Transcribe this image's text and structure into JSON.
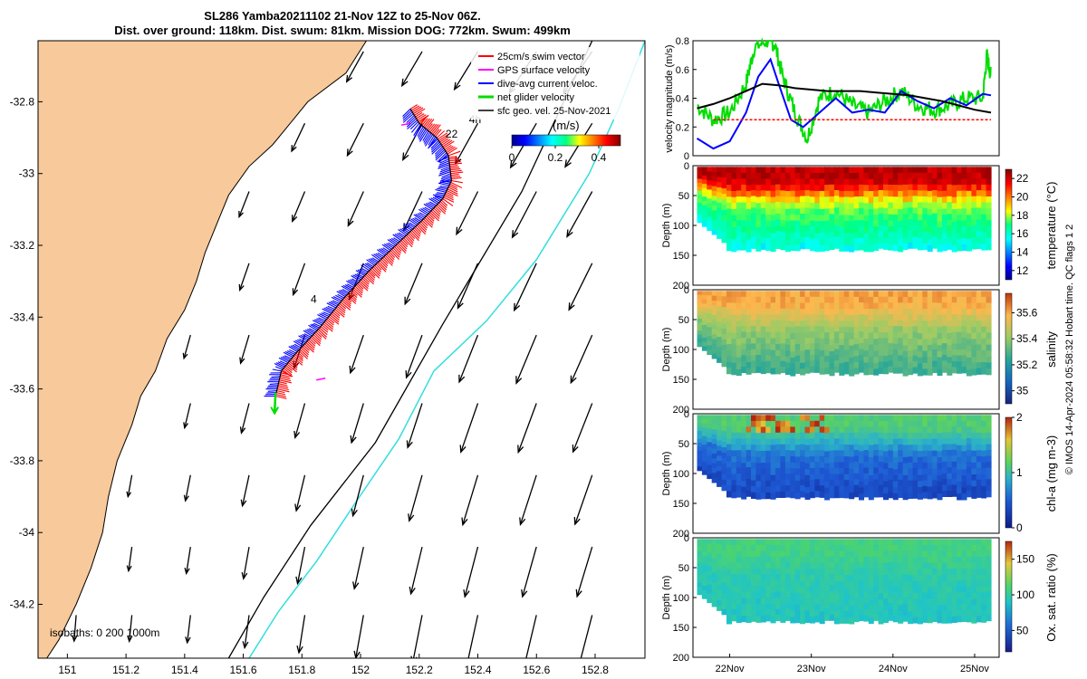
{
  "header": {
    "line1": "SL286 Yamba20211102 21-Nov 12Z to 25-Nov 06Z.",
    "line2": "Dist. over ground: 118km. Dist. swum: 81km. Mission DOG: 772km. Swum: 499km"
  },
  "footer_credit": "© IMOS 14-Apr-2024 05:58:32 Hobart time. QC flags 1  2",
  "colors": {
    "land": "#f8c99a",
    "swim_vector": "#ff0000",
    "gps_velocity": "#ff00ff",
    "dive_avg_current": "#0000ff",
    "net_glider_velocity": "#00dd00",
    "sfc_geo_velocity": "#000000",
    "isobath_200": "#000000",
    "isobath_1000": "#33dddd"
  },
  "chart_data": [
    {
      "type": "map",
      "xlim": [
        150.9,
        152.97
      ],
      "ylim": [
        -34.35,
        -32.63
      ],
      "xticks": [
        "151",
        "151.2",
        "151.4",
        "151.6",
        "151.8",
        "152",
        "152.2",
        "152.4",
        "152.6",
        "152.8"
      ],
      "xtick_values": [
        151,
        151.2,
        151.4,
        151.6,
        151.8,
        152,
        152.2,
        152.4,
        152.6,
        152.8
      ],
      "yticks": [
        "-32.8",
        "-33",
        "-33.2",
        "-33.4",
        "-33.6",
        "-33.8",
        "-34",
        "-34.2"
      ],
      "ytick_values": [
        -32.8,
        -33,
        -33.2,
        -33.4,
        -33.6,
        -33.8,
        -34,
        -34.2
      ],
      "legend": [
        {
          "label": "25cm/s swim vector",
          "color": "#ff0000"
        },
        {
          "label": "GPS surface velocity",
          "color": "#ff00ff"
        },
        {
          "label": "dive-avg current veloc.",
          "color": "#0000ff"
        },
        {
          "label": "net glider velocity",
          "color": "#00dd00"
        },
        {
          "label": "sfc geo. vel. 25-Nov-2021",
          "color": "#000000"
        }
      ],
      "legend_position": "top-right",
      "colorbar": {
        "title": "(m/s)",
        "ticks": [
          "0",
          "0.2",
          "0.4"
        ],
        "tick_values": [
          0,
          0.2,
          0.4
        ],
        "range": [
          0,
          0.5
        ]
      },
      "annotations": [
        {
          "text": "22",
          "lon": 152.29,
          "lat": -32.9
        },
        {
          "text": "4h",
          "lon": 152.37,
          "lat": -32.86
        },
        {
          "text": "4",
          "lon": 151.83,
          "lat": -33.36
        }
      ],
      "isobaths_label": "isobaths: 0   200  1000m",
      "glider_track": [
        [
          152.17,
          -32.82
        ],
        [
          152.2,
          -32.86
        ],
        [
          152.26,
          -32.9
        ],
        [
          152.3,
          -32.95
        ],
        [
          152.31,
          -33.02
        ],
        [
          152.28,
          -33.07
        ],
        [
          152.21,
          -33.13
        ],
        [
          152.12,
          -33.2
        ],
        [
          152.03,
          -33.27
        ],
        [
          151.94,
          -33.35
        ],
        [
          151.86,
          -33.43
        ],
        [
          151.78,
          -33.5
        ],
        [
          151.73,
          -33.55
        ],
        [
          151.71,
          -33.62
        ]
      ],
      "isobath_200": [
        [
          152.79,
          -32.63
        ],
        [
          152.55,
          -33.05
        ],
        [
          152.28,
          -33.42
        ],
        [
          152.05,
          -33.75
        ],
        [
          151.83,
          -33.98
        ],
        [
          151.67,
          -34.18
        ],
        [
          151.55,
          -34.35
        ]
      ],
      "isobath_1000": [
        [
          152.97,
          -32.63
        ],
        [
          152.88,
          -32.82
        ],
        [
          152.78,
          -33.0
        ],
        [
          152.6,
          -33.24
        ],
        [
          152.43,
          -33.41
        ],
        [
          152.25,
          -33.55
        ],
        [
          152.13,
          -33.74
        ],
        [
          151.98,
          -33.92
        ],
        [
          151.85,
          -34.08
        ],
        [
          151.72,
          -34.22
        ],
        [
          151.62,
          -34.35
        ]
      ],
      "coastline": [
        [
          152.02,
          -32.63
        ],
        [
          151.95,
          -32.72
        ],
        [
          151.82,
          -32.8
        ],
        [
          151.76,
          -32.86
        ],
        [
          151.7,
          -32.92
        ],
        [
          151.62,
          -32.98
        ],
        [
          151.55,
          -33.06
        ],
        [
          151.51,
          -33.14
        ],
        [
          151.47,
          -33.22
        ],
        [
          151.44,
          -33.3
        ],
        [
          151.4,
          -33.38
        ],
        [
          151.34,
          -33.46
        ],
        [
          151.3,
          -33.55
        ],
        [
          151.25,
          -33.62
        ],
        [
          151.22,
          -33.7
        ],
        [
          151.17,
          -33.8
        ],
        [
          151.14,
          -33.9
        ],
        [
          151.12,
          -34.0
        ],
        [
          151.08,
          -34.1
        ],
        [
          151.03,
          -34.2
        ],
        [
          150.97,
          -34.3
        ],
        [
          150.93,
          -34.35
        ]
      ]
    },
    {
      "type": "line",
      "ylabel": "velocity magnitude (m/s)",
      "ylim": [
        0,
        0.8
      ],
      "yticks": [
        "0",
        "0.2",
        "0.4",
        "0.6",
        "0.8"
      ],
      "xlim": [
        21.55,
        25.3
      ],
      "series": [
        {
          "color": "#00dd00",
          "x": [
            21.6,
            21.8,
            22.0,
            22.2,
            22.3,
            22.45,
            22.55,
            22.65,
            22.8,
            22.95,
            23.1,
            23.3,
            23.5,
            23.7,
            23.9,
            24.1,
            24.3,
            24.5,
            24.7,
            24.9,
            25.1,
            25.15,
            25.2
          ],
          "values": [
            0.35,
            0.25,
            0.3,
            0.5,
            0.75,
            0.8,
            0.78,
            0.55,
            0.3,
            0.12,
            0.4,
            0.45,
            0.35,
            0.3,
            0.38,
            0.45,
            0.35,
            0.32,
            0.35,
            0.4,
            0.4,
            0.7,
            0.55
          ]
        },
        {
          "color": "#0000ff",
          "x": [
            21.6,
            21.8,
            22.0,
            22.2,
            22.35,
            22.5,
            22.6,
            22.75,
            22.9,
            23.1,
            23.3,
            23.5,
            23.7,
            23.9,
            24.1,
            24.3,
            24.5,
            24.7,
            24.9,
            25.1,
            25.2
          ],
          "values": [
            0.12,
            0.05,
            0.1,
            0.3,
            0.55,
            0.67,
            0.5,
            0.25,
            0.2,
            0.3,
            0.4,
            0.3,
            0.32,
            0.3,
            0.45,
            0.38,
            0.33,
            0.4,
            0.35,
            0.43,
            0.42
          ]
        },
        {
          "color": "#000000",
          "x": [
            21.6,
            21.8,
            22.0,
            22.2,
            22.4,
            22.6,
            22.8,
            23.0,
            23.2,
            23.4,
            23.6,
            23.8,
            24.0,
            24.2,
            24.4,
            24.6,
            24.8,
            25.0,
            25.2
          ],
          "values": [
            0.33,
            0.36,
            0.4,
            0.45,
            0.5,
            0.49,
            0.47,
            0.46,
            0.45,
            0.45,
            0.45,
            0.44,
            0.43,
            0.42,
            0.4,
            0.38,
            0.35,
            0.32,
            0.3
          ]
        },
        {
          "color": "#ff0000",
          "x": [
            21.8,
            25.2
          ],
          "values": [
            0.25,
            0.25
          ]
        }
      ]
    },
    {
      "type": "heatmap",
      "variable": "temperature",
      "colorbar_label": "temperature (°C)",
      "ticks": [
        "12",
        "14",
        "16",
        "18",
        "20",
        "22"
      ],
      "tick_values": [
        12,
        14,
        16,
        18,
        20,
        22
      ],
      "range": [
        11,
        23
      ],
      "ylabel": "Depth (m)",
      "yticks": [
        "0",
        "50",
        "100",
        "150",
        "200"
      ],
      "ylim": [
        0,
        200
      ],
      "surface_value": 22,
      "mid_value": 18,
      "deep_value": 15
    },
    {
      "type": "heatmap",
      "variable": "salinity",
      "colorbar_label": "salinity",
      "ticks": [
        "35",
        "35.2",
        "35.4",
        "35.6"
      ],
      "tick_values": [
        35,
        35.2,
        35.4,
        35.6
      ],
      "range": [
        34.9,
        35.75
      ],
      "ylabel": "Depth (m)",
      "yticks": [
        "0",
        "50",
        "100",
        "150",
        "200"
      ],
      "ylim": [
        0,
        200
      ],
      "surface_value": 35.6,
      "mid_value": 35.4,
      "deep_value": 35.25
    },
    {
      "type": "heatmap",
      "variable": "chl-a",
      "colorbar_label": "chl-a (mg m-3)",
      "ticks": [
        "0",
        "1",
        "2"
      ],
      "tick_values": [
        0,
        1,
        2
      ],
      "range": [
        0,
        2
      ],
      "ylabel": "Depth (m)",
      "yticks": [
        "0",
        "50",
        "100",
        "150",
        "200"
      ],
      "ylim": [
        0,
        200
      ],
      "surface_value": 1.1,
      "mid_value": 0.5,
      "deep_value": 0.25
    },
    {
      "type": "heatmap",
      "variable": "oxygen",
      "colorbar_label": "Ox. sat. ratio (%)",
      "ticks": [
        "50",
        "100",
        "150"
      ],
      "tick_values": [
        50,
        100,
        150
      ],
      "range": [
        20,
        175
      ],
      "ylabel": "Depth (m)",
      "yticks": [
        "0",
        "50",
        "100",
        "150",
        "200"
      ],
      "ylim": [
        0,
        200
      ],
      "surface_value": 105,
      "mid_value": 90,
      "deep_value": 85
    }
  ],
  "time_axis": {
    "labels": [
      "22Nov",
      "23Nov",
      "24Nov",
      "25Nov"
    ],
    "values": [
      22,
      23,
      24,
      25
    ]
  }
}
